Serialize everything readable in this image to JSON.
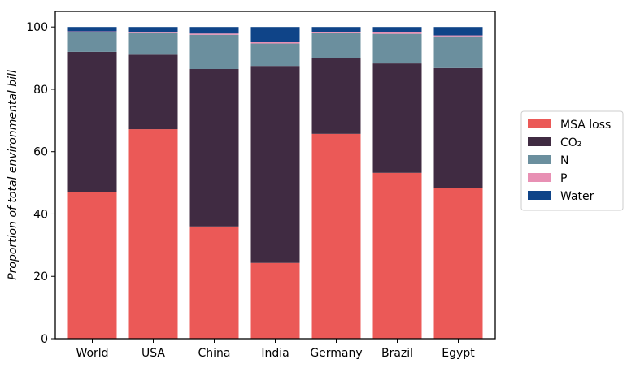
{
  "chart_data": {
    "type": "bar",
    "stacked": true,
    "categories": [
      "World",
      "USA",
      "China",
      "India",
      "Germany",
      "Brazil",
      "Egypt"
    ],
    "series": [
      {
        "name": "MSA loss",
        "color": "#EB5957",
        "values": [
          47.0,
          67.2,
          36.0,
          24.3,
          65.7,
          53.2,
          48.2
        ]
      },
      {
        "name": "CO₂",
        "color": "#402B42",
        "values": [
          45.0,
          23.9,
          50.5,
          63.2,
          24.2,
          35.1,
          38.6
        ]
      },
      {
        "name": "N",
        "color": "#6B8F9E",
        "values": [
          6.3,
          6.9,
          11.0,
          7.2,
          8.1,
          9.5,
          10.2
        ]
      },
      {
        "name": "P",
        "color": "#E890B4",
        "values": [
          0.3,
          0.2,
          0.4,
          0.4,
          0.3,
          0.5,
          0.3
        ]
      },
      {
        "name": "Water",
        "color": "#0F4488",
        "values": [
          1.4,
          1.8,
          2.1,
          4.9,
          1.7,
          1.7,
          2.7
        ]
      }
    ],
    "title": "",
    "xlabel": "",
    "ylabel": "Proportion of total environmental bill",
    "ylim": [
      0,
      105
    ],
    "yticks": [
      0,
      20,
      40,
      60,
      80,
      100
    ],
    "grid": false,
    "legend_position": "right"
  }
}
